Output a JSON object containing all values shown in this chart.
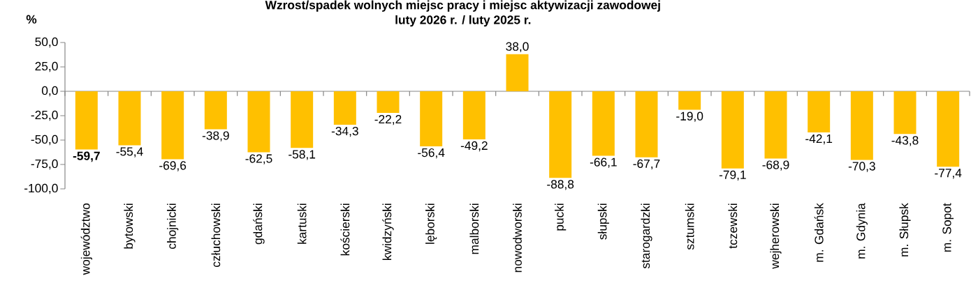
{
  "chart_data": {
    "type": "bar",
    "title": "Wzrost/spadek wolnych miejsc pracy i miejsc aktywizacji zawodowej",
    "subtitle": "luty 2026 r. / luty 2025 r.",
    "ylabel": "%",
    "categories": [
      "województwo",
      "bytowski",
      "chojnicki",
      "człuchowski",
      "gdański",
      "kartuski",
      "kościerski",
      "kwidzyński",
      "lęborski",
      "malborski",
      "nowodworski",
      "pucki",
      "słupski",
      "starogardzki",
      "sztumski",
      "tczewski",
      "wejherowski",
      "m. Gdańsk",
      "m. Gdynia",
      "m. Słupsk",
      "m. Sopot"
    ],
    "values": [
      -59.7,
      -55.4,
      -69.6,
      -38.9,
      -62.5,
      -58.1,
      -34.3,
      -22.2,
      -56.4,
      -49.2,
      38.0,
      -88.8,
      -66.1,
      -67.7,
      -19.0,
      -79.1,
      -68.9,
      -42.1,
      -70.3,
      -43.8,
      -77.4
    ],
    "value_labels": [
      "**-59,7**",
      "-55,4",
      "-69,6",
      "-38,9",
      "-62,5",
      "-58,1",
      "-34,3",
      "-22,2",
      "-56,4",
      "-49,2",
      "38,0",
      "-88,8",
      "-66,1",
      "-67,7",
      "-19,0",
      "-79,1",
      "-68,9",
      "-42,1",
      "-70,3",
      "-43,8",
      "-77,4"
    ],
    "color": "#ffc000",
    "ylim": [
      -100,
      50
    ],
    "yticks": [
      {
        "value": -100,
        "label": "-100,0"
      },
      {
        "value": -75,
        "label": "-75,0"
      },
      {
        "value": -50,
        "label": "-50,0"
      },
      {
        "value": -25,
        "label": "-25,0"
      },
      {
        "value": 0,
        "label": "0,0"
      },
      {
        "value": 25,
        "label": "25,0"
      },
      {
        "value": 50,
        "label": "50,0"
      }
    ]
  }
}
